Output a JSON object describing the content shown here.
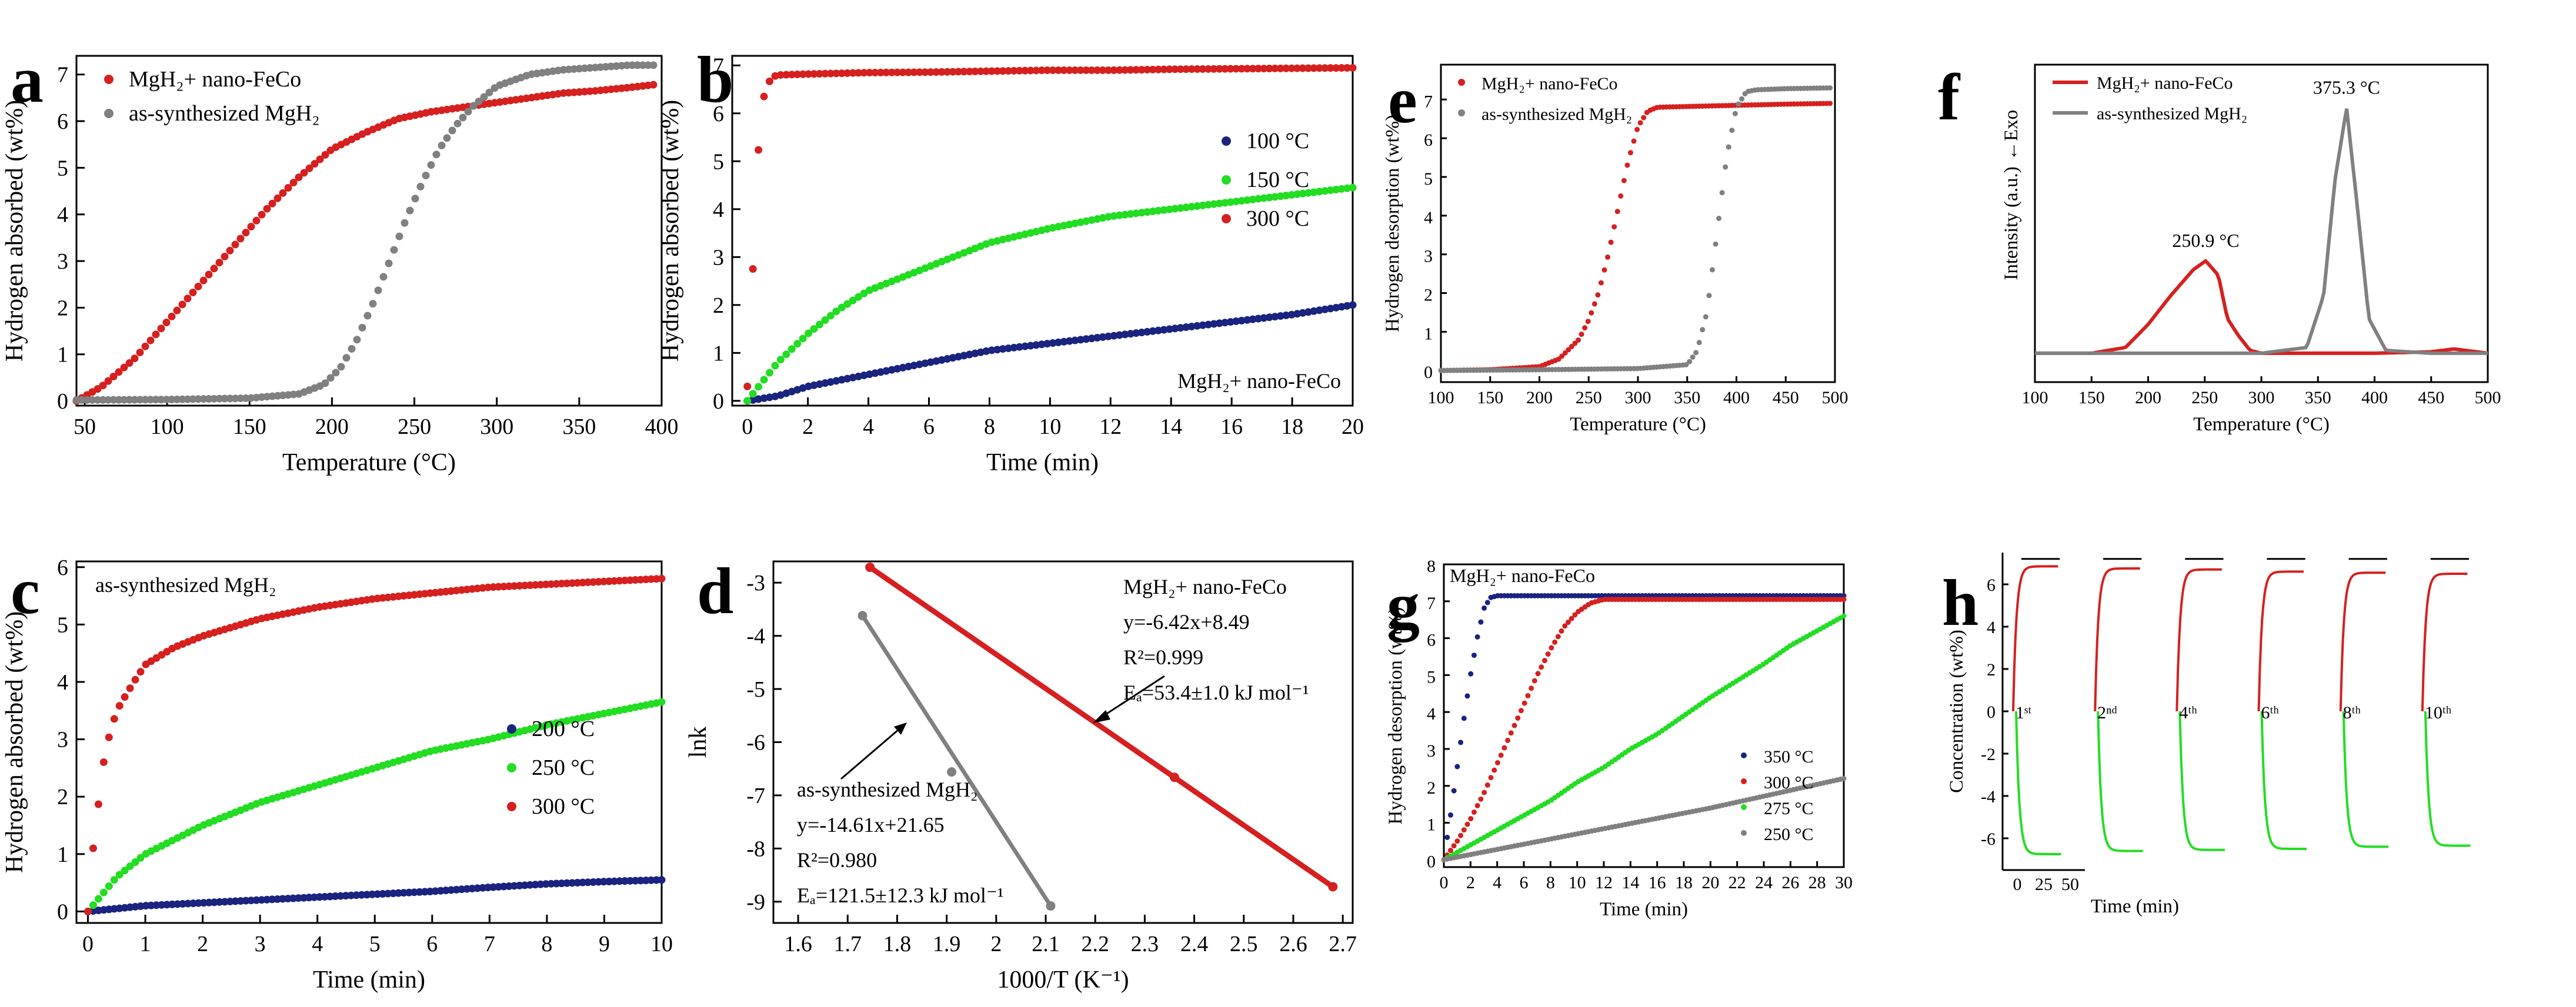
{
  "colors": {
    "red": "#d62020",
    "gray": "#808080",
    "green": "#22dd22",
    "navy": "#1a237e",
    "black": "#000000"
  },
  "chart_data": [
    {
      "id": "a",
      "letter": "a",
      "type": "scatter",
      "xlabel": "Temperature (°C)",
      "ylabel": "Hydrogen absorbed (wt%)",
      "xlim": [
        45,
        400
      ],
      "ylim": [
        -0.1,
        7.4
      ],
      "xticks": [
        50,
        100,
        150,
        200,
        250,
        300,
        350,
        400
      ],
      "yticks": [
        0,
        1,
        2,
        3,
        4,
        5,
        6,
        7
      ],
      "legend_position": "top-left",
      "series": [
        {
          "name": "MgH₂+ nano-FeCo",
          "color": "red",
          "x": [
            45,
            60,
            80,
            100,
            120,
            140,
            160,
            180,
            200,
            220,
            240,
            260,
            280,
            300,
            320,
            340,
            360,
            380,
            395
          ],
          "y": [
            0.0,
            0.3,
            0.9,
            1.7,
            2.5,
            3.3,
            4.1,
            4.8,
            5.4,
            5.75,
            6.05,
            6.2,
            6.3,
            6.4,
            6.5,
            6.6,
            6.65,
            6.72,
            6.78
          ]
        },
        {
          "name": "as-synthesized MgH₂",
          "color": "gray",
          "x": [
            45,
            100,
            150,
            180,
            195,
            205,
            215,
            225,
            235,
            245,
            255,
            265,
            275,
            285,
            300,
            320,
            340,
            360,
            380,
            395
          ],
          "y": [
            0.02,
            0.03,
            0.06,
            0.15,
            0.35,
            0.7,
            1.3,
            2.1,
            3.0,
            3.9,
            4.7,
            5.4,
            5.9,
            6.3,
            6.75,
            7.0,
            7.1,
            7.15,
            7.2,
            7.2
          ]
        }
      ]
    },
    {
      "id": "b",
      "letter": "b",
      "type": "scatter",
      "xlabel": "Time (min)",
      "ylabel": "Hydrogen absorbed (wt%)",
      "xlim": [
        -0.5,
        20
      ],
      "ylim": [
        -0.1,
        7.2
      ],
      "xticks": [
        0,
        2,
        4,
        6,
        8,
        10,
        12,
        14,
        16,
        18,
        20
      ],
      "yticks": [
        0,
        1,
        2,
        3,
        4,
        5,
        6,
        7
      ],
      "legend_position": "right",
      "annotation": "MgH₂+ nano-FeCo",
      "series": [
        {
          "name": "100 °C",
          "color": "navy",
          "x": [
            0,
            1,
            2,
            4,
            6,
            8,
            10,
            12,
            14,
            16,
            18,
            20
          ],
          "y": [
            0,
            0.1,
            0.3,
            0.55,
            0.8,
            1.05,
            1.2,
            1.35,
            1.5,
            1.65,
            1.8,
            2.0
          ]
        },
        {
          "name": "150 °C",
          "color": "green",
          "x": [
            0,
            0.5,
            1,
            2,
            3,
            4,
            6,
            8,
            10,
            12,
            14,
            16,
            18,
            20
          ],
          "y": [
            0,
            0.4,
            0.8,
            1.4,
            1.9,
            2.3,
            2.8,
            3.3,
            3.6,
            3.85,
            4.0,
            4.15,
            4.3,
            4.45
          ]
        },
        {
          "name": "300 °C",
          "color": "red",
          "x": [
            0,
            0.1,
            0.2,
            0.3,
            0.4,
            0.5,
            0.6,
            0.8,
            1,
            2,
            4,
            6,
            8,
            10,
            12,
            14,
            16,
            18,
            20
          ],
          "y": [
            0.3,
            1.5,
            3.0,
            4.5,
            5.6,
            6.2,
            6.5,
            6.75,
            6.8,
            6.82,
            6.85,
            6.86,
            6.88,
            6.9,
            6.9,
            6.92,
            6.93,
            6.94,
            6.95
          ]
        }
      ]
    },
    {
      "id": "c",
      "letter": "c",
      "type": "scatter",
      "xlabel": "Time (min)",
      "ylabel": "Hydrogen absorbed (wt%)",
      "xlim": [
        -0.2,
        10
      ],
      "ylim": [
        -0.2,
        6.1
      ],
      "xticks": [
        0,
        1,
        2,
        3,
        4,
        5,
        6,
        7,
        8,
        9,
        10
      ],
      "yticks": [
        0,
        1,
        2,
        3,
        4,
        5,
        6
      ],
      "legend_position": "right",
      "annotation": "as-synthesized MgH₂",
      "series": [
        {
          "name": "200 °C",
          "color": "navy",
          "x": [
            0,
            1,
            2,
            3,
            4,
            5,
            6,
            7,
            8,
            9,
            10
          ],
          "y": [
            0,
            0.1,
            0.15,
            0.2,
            0.25,
            0.3,
            0.35,
            0.42,
            0.48,
            0.52,
            0.55
          ]
        },
        {
          "name": "250 °C",
          "color": "green",
          "x": [
            0,
            0.5,
            1,
            2,
            3,
            4,
            5,
            6,
            7,
            8,
            9,
            10
          ],
          "y": [
            0,
            0.6,
            1.0,
            1.5,
            1.9,
            2.2,
            2.5,
            2.8,
            3.0,
            3.25,
            3.45,
            3.65
          ]
        },
        {
          "name": "300 °C",
          "color": "red",
          "x": [
            0,
            0.1,
            0.2,
            0.3,
            0.5,
            0.8,
            1,
            1.5,
            2,
            3,
            4,
            5,
            6,
            7,
            8,
            9,
            10
          ],
          "y": [
            0,
            1.2,
            2.0,
            2.8,
            3.5,
            4.0,
            4.3,
            4.6,
            4.8,
            5.1,
            5.3,
            5.45,
            5.55,
            5.65,
            5.7,
            5.75,
            5.8
          ]
        }
      ]
    },
    {
      "id": "d",
      "letter": "d",
      "type": "scatter",
      "xlabel": "1000/T (K⁻¹)",
      "ylabel": "lnk",
      "xlim": [
        1.55,
        2.72
      ],
      "ylim": [
        -9.4,
        -2.6
      ],
      "xticks": [
        1.6,
        1.7,
        1.8,
        1.9,
        2.0,
        2.1,
        2.2,
        2.3,
        2.4,
        2.5,
        2.6,
        2.7
      ],
      "yticks": [
        -3,
        -4,
        -5,
        -6,
        -7,
        -8,
        -9
      ],
      "series": [
        {
          "name": "MgH₂+ nano-FeCo",
          "color": "red",
          "x": [
            1.745,
            2.36,
            2.68
          ],
          "y": [
            -2.71,
            -6.66,
            -8.72
          ],
          "fit": [
            [
              1.745,
              -2.71
            ],
            [
              2.68,
              -8.72
            ]
          ]
        },
        {
          "name": "as-synthesized MgH₂",
          "color": "gray",
          "x": [
            1.73,
            1.91,
            2.11
          ],
          "y": [
            -3.62,
            -6.56,
            -9.08
          ],
          "fit": [
            [
              1.73,
              -3.62
            ],
            [
              2.11,
              -9.08
            ]
          ]
        }
      ],
      "annotations": {
        "fe_lines": [
          "MgH₂+ nano-FeCo",
          "y=-6.42x+8.49",
          "R²=0.999",
          "Eₐ=53.4±1.0 kJ mol⁻¹"
        ],
        "mg_lines": [
          "as-synthesized MgH₂",
          "y=-14.61x+21.65",
          "R²=0.980",
          "Eₐ=121.5±12.3 kJ mol⁻¹"
        ]
      }
    },
    {
      "id": "e",
      "letter": "e",
      "type": "scatter",
      "xlabel": "Temperature (°C)",
      "ylabel": "Hydrogen desorption (wt%)",
      "xlim": [
        100,
        500
      ],
      "ylim": [
        -0.3,
        7.9
      ],
      "xticks": [
        100,
        150,
        200,
        250,
        300,
        350,
        400,
        450,
        500
      ],
      "yticks": [
        0,
        1,
        2,
        3,
        4,
        5,
        6,
        7
      ],
      "legend_position": "top-left",
      "series": [
        {
          "name": "MgH₂+ nano-FeCo",
          "color": "red",
          "x": [
            100,
            150,
            200,
            220,
            240,
            250,
            260,
            270,
            280,
            290,
            300,
            310,
            320,
            350,
            400,
            450,
            495
          ],
          "y": [
            0.0,
            0.02,
            0.1,
            0.3,
            0.8,
            1.3,
            2.0,
            3.0,
            4.2,
            5.4,
            6.3,
            6.7,
            6.8,
            6.82,
            6.85,
            6.88,
            6.9
          ]
        },
        {
          "name": "as-synthesized MgH₂",
          "color": "gray",
          "x": [
            100,
            200,
            300,
            350,
            360,
            370,
            380,
            390,
            400,
            410,
            420,
            450,
            495
          ],
          "y": [
            0.0,
            0.02,
            0.05,
            0.15,
            0.5,
            1.5,
            3.5,
            5.5,
            6.8,
            7.2,
            7.25,
            7.28,
            7.3
          ]
        }
      ]
    },
    {
      "id": "f",
      "letter": "f",
      "type": "line",
      "xlabel": "Temperature (°C)",
      "ylabel": "Intensity (a.u.)",
      "xlim": [
        100,
        500
      ],
      "ylim": [
        0,
        110
      ],
      "xticks": [
        100,
        150,
        200,
        250,
        300,
        350,
        400,
        450,
        500
      ],
      "top_label": "←Exo",
      "legend_position": "top-left",
      "series": [
        {
          "name": "MgH₂+ nano-FeCo",
          "color": "red",
          "x": [
            100,
            150,
            180,
            200,
            220,
            240,
            250.9,
            262,
            270,
            280,
            290,
            300,
            350,
            400,
            450,
            470,
            490,
            500
          ],
          "y": [
            10,
            10,
            12,
            20,
            30,
            39,
            42,
            37,
            22,
            16,
            11,
            10,
            10,
            10,
            10.5,
            11.5,
            10.5,
            10
          ],
          "peak_label": "250.9 °C",
          "peak": [
            250.9,
            42
          ]
        },
        {
          "name": "as-synthesized MgH₂",
          "color": "gray",
          "x": [
            100,
            200,
            300,
            340,
            355,
            365,
            375.3,
            385,
            395,
            410,
            450,
            500
          ],
          "y": [
            10,
            10,
            10,
            12,
            30,
            70,
            95,
            60,
            22,
            11,
            10,
            10
          ],
          "peak_label": "375.3 °C",
          "peak": [
            375.3,
            95
          ]
        }
      ]
    },
    {
      "id": "g",
      "letter": "g",
      "type": "scatter",
      "xlabel": "Time (min)",
      "ylabel": "Hydrogen desorption (wt%)",
      "xlim": [
        0,
        30
      ],
      "ylim": [
        -0.2,
        8.0
      ],
      "xticks": [
        0,
        2,
        4,
        6,
        8,
        10,
        12,
        14,
        16,
        18,
        20,
        22,
        24,
        26,
        28,
        30
      ],
      "yticks": [
        0,
        1,
        2,
        3,
        4,
        5,
        6,
        7,
        8
      ],
      "annotation": "MgH₂+ nano-FeCo",
      "legend_position": "bottom-right",
      "series": [
        {
          "name": "350 °C",
          "color": "navy",
          "x": [
            0,
            0.5,
            1,
            1.5,
            2,
            2.5,
            3,
            3.5,
            4,
            5,
            10,
            20,
            30
          ],
          "y": [
            0,
            1.2,
            2.5,
            3.8,
            5.0,
            6.0,
            6.8,
            7.1,
            7.15,
            7.15,
            7.15,
            7.15,
            7.15
          ]
        },
        {
          "name": "300 °C",
          "color": "red",
          "x": [
            0,
            1,
            2,
            3,
            4,
            5,
            6,
            7,
            8,
            9,
            10,
            11,
            12,
            14,
            20,
            30
          ],
          "y": [
            0,
            0.5,
            1.1,
            1.8,
            2.6,
            3.4,
            4.2,
            5.0,
            5.7,
            6.3,
            6.7,
            6.95,
            7.05,
            7.05,
            7.05,
            7.05
          ]
        },
        {
          "name": "275 °C",
          "color": "green",
          "x": [
            0,
            2,
            4,
            6,
            8,
            10,
            12,
            14,
            16,
            18,
            20,
            22,
            24,
            26,
            28,
            30
          ],
          "y": [
            0,
            0.4,
            0.8,
            1.2,
            1.6,
            2.1,
            2.5,
            3.0,
            3.4,
            3.9,
            4.4,
            4.85,
            5.3,
            5.8,
            6.2,
            6.6
          ]
        },
        {
          "name": "250 °C",
          "color": "gray",
          "x": [
            0,
            5,
            10,
            15,
            20,
            25,
            30
          ],
          "y": [
            0,
            0.35,
            0.7,
            1.05,
            1.4,
            1.8,
            2.2
          ]
        }
      ]
    },
    {
      "id": "h",
      "letter": "h",
      "type": "line",
      "xlabel": "Time (min)",
      "ylabel": "Concentration (wt%)",
      "ylim": [
        -7.5,
        7.5
      ],
      "yticks": [
        6,
        4,
        2,
        0,
        -2,
        -4,
        -6
      ],
      "xticks": [
        0,
        25,
        50
      ],
      "cycles": [
        {
          "label": "1ˢᵗ",
          "abs_max": 6.85,
          "des_min": -6.75
        },
        {
          "label": "2ⁿᵈ",
          "abs_max": 6.75,
          "des_min": -6.6
        },
        {
          "label": "4ᵗʰ",
          "abs_max": 6.7,
          "des_min": -6.55
        },
        {
          "label": "6ᵗʰ",
          "abs_max": 6.6,
          "des_min": -6.5
        },
        {
          "label": "8ᵗʰ",
          "abs_max": 6.55,
          "des_min": -6.4
        },
        {
          "label": "10ᵗʰ",
          "abs_max": 6.5,
          "des_min": -6.35
        }
      ]
    }
  ]
}
